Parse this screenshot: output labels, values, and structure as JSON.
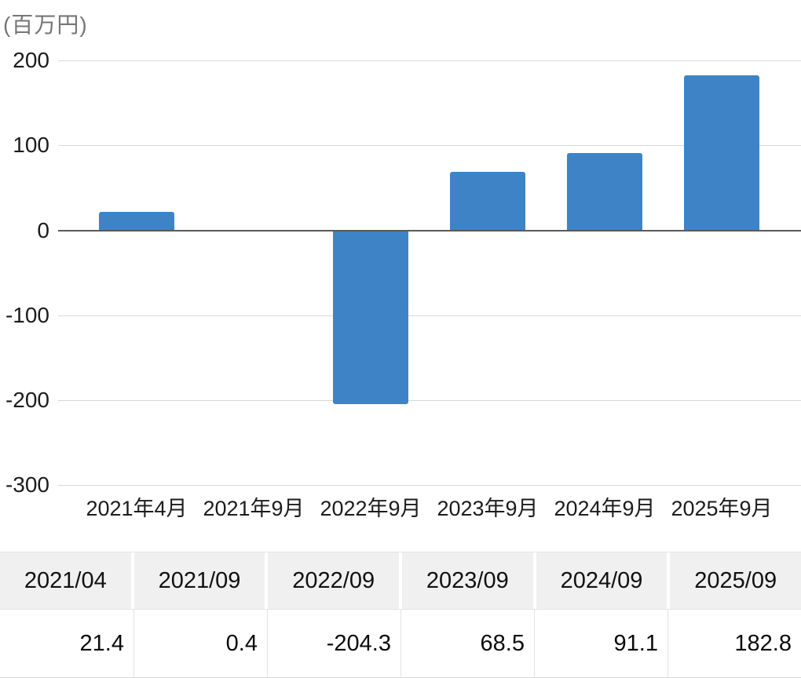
{
  "unit_label": "(百万円)",
  "chart_data": {
    "type": "bar",
    "title": "",
    "ylabel": "百万円",
    "xlabel": "",
    "categories": [
      "2021年4月",
      "2021年9月",
      "2022年9月",
      "2023年9月",
      "2024年9月",
      "2025年9月"
    ],
    "values": [
      21.4,
      0.4,
      -204.3,
      68.5,
      91.1,
      182.8
    ],
    "yticks": [
      200,
      100,
      0,
      -100,
      -200,
      -300
    ],
    "ylim": [
      -300,
      200
    ],
    "grid": true,
    "legend": false,
    "bar_color": "#3F83C7",
    "grid_color": "#D8D8D8",
    "zero_line_color": "#595959"
  },
  "table": {
    "headers": [
      "2021/04",
      "2021/09",
      "2022/09",
      "2023/09",
      "2024/09",
      "2025/09"
    ],
    "values": [
      "21.4",
      "0.4",
      "-204.3",
      "68.5",
      "91.1",
      "182.8"
    ],
    "header_bg": "#F0F0F0"
  }
}
